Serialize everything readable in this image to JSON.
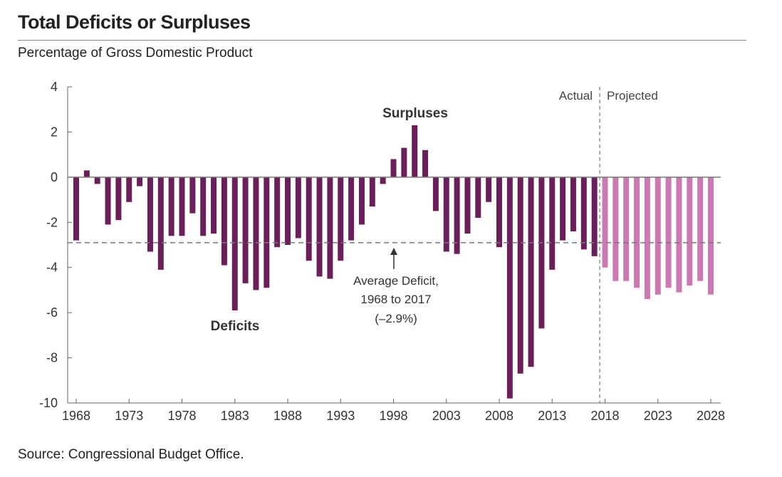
{
  "chart_data": {
    "type": "bar",
    "title": "Total Deficits or Surpluses",
    "subtitle": "Percentage of Gross Domestic Product",
    "source": "Source: Congressional Budget Office.",
    "ylim": [
      -10,
      4
    ],
    "yticks": [
      4,
      2,
      0,
      -2,
      -4,
      -6,
      -8,
      -10
    ],
    "xticks": [
      1968,
      1973,
      1978,
      1983,
      1988,
      1993,
      1998,
      2003,
      2008,
      2013,
      2018,
      2023,
      2028
    ],
    "grid": false,
    "colors": {
      "actual": "#6b1f5a",
      "projected": "#cc79b3",
      "reference": "#777777"
    },
    "series": [
      {
        "name": "Actual",
        "x": [
          1968,
          1969,
          1970,
          1971,
          1972,
          1973,
          1974,
          1975,
          1976,
          1977,
          1978,
          1979,
          1980,
          1981,
          1982,
          1983,
          1984,
          1985,
          1986,
          1987,
          1988,
          1989,
          1990,
          1991,
          1992,
          1993,
          1994,
          1995,
          1996,
          1997,
          1998,
          1999,
          2000,
          2001,
          2002,
          2003,
          2004,
          2005,
          2006,
          2007,
          2008,
          2009,
          2010,
          2011,
          2012,
          2013,
          2014,
          2015,
          2016,
          2017
        ],
        "values": [
          -2.8,
          0.3,
          -0.3,
          -2.1,
          -1.9,
          -1.1,
          -0.4,
          -3.3,
          -4.1,
          -2.6,
          -2.6,
          -1.6,
          -2.6,
          -2.5,
          -3.9,
          -5.9,
          -4.7,
          -5.0,
          -4.9,
          -3.1,
          -3.0,
          -2.7,
          -3.7,
          -4.4,
          -4.5,
          -3.7,
          -2.8,
          -2.1,
          -1.3,
          -0.3,
          0.8,
          1.3,
          2.3,
          1.2,
          -1.5,
          -3.3,
          -3.4,
          -2.5,
          -1.8,
          -1.1,
          -3.1,
          -9.8,
          -8.7,
          -8.4,
          -6.7,
          -4.1,
          -2.8,
          -2.4,
          -3.2,
          -3.5
        ]
      },
      {
        "name": "Projected",
        "x": [
          2018,
          2019,
          2020,
          2021,
          2022,
          2023,
          2024,
          2025,
          2026,
          2027,
          2028
        ],
        "values": [
          -4.0,
          -4.6,
          -4.6,
          -4.9,
          -5.4,
          -5.2,
          -4.9,
          -5.1,
          -4.8,
          -4.6,
          -5.2
        ]
      }
    ],
    "reference_line": {
      "value": -2.9
    },
    "annotations": {
      "surpluses": "Surpluses",
      "deficits": "Deficits",
      "average_line1": "Average Deficit,",
      "average_line2": "1968 to 2017",
      "average_line3": "(–2.9%)",
      "actual": "Actual",
      "projected": "Projected"
    }
  }
}
